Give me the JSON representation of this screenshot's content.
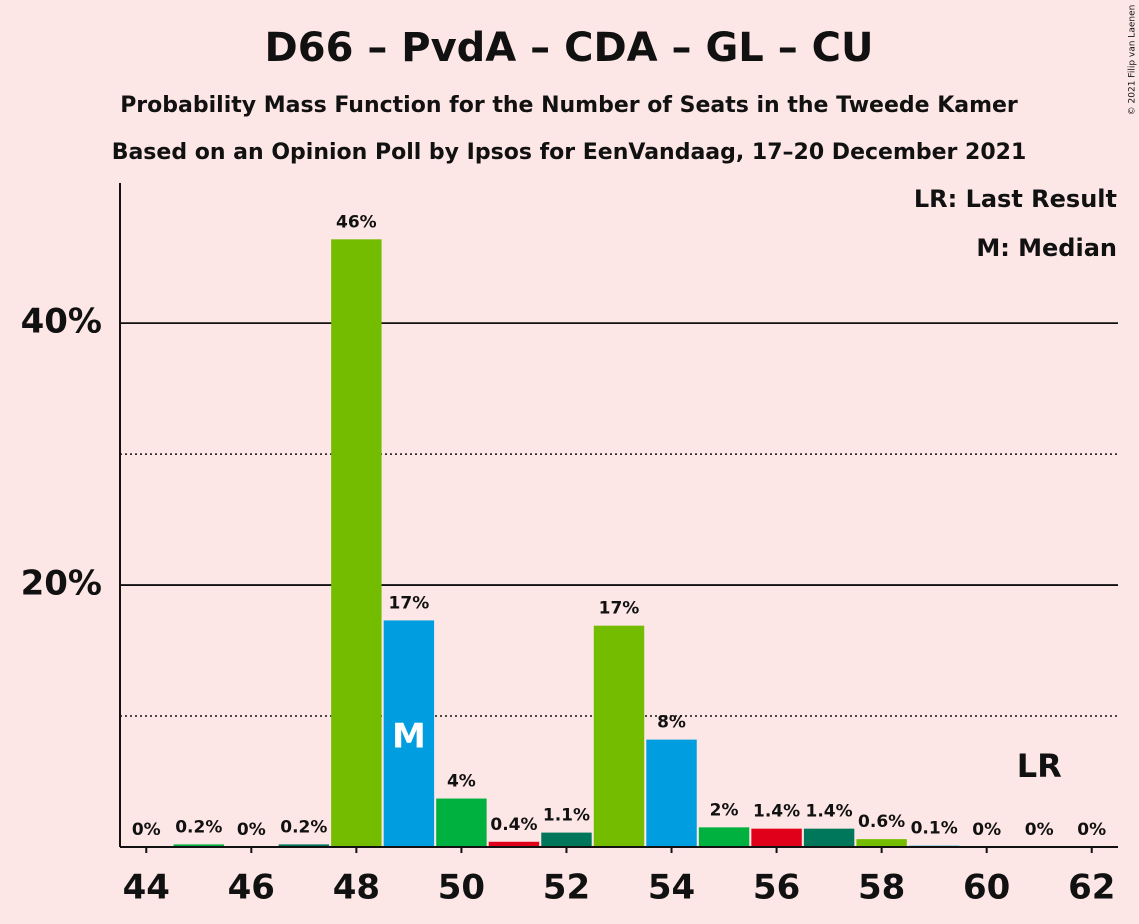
{
  "chart_data": {
    "type": "bar",
    "title": "D66 – PvdA – CDA – GL – CU",
    "subtitle": "Probability Mass Function for the Number of Seats in the Tweede Kamer",
    "subtitle2": "Based on an Opinion Poll by Ipsos for EenVandaag, 17–20 December 2021",
    "copyright": "© 2021 Filip van Laenen",
    "legend": [
      "LR: Last Result",
      "M: Median"
    ],
    "x": [
      44,
      45,
      46,
      47,
      48,
      49,
      50,
      51,
      52,
      53,
      54,
      55,
      56,
      57,
      58,
      59,
      60,
      61,
      62
    ],
    "values": [
      0,
      0.2,
      0,
      0.2,
      46.4,
      17.3,
      3.7,
      0.4,
      1.1,
      16.9,
      8.2,
      1.5,
      1.4,
      1.4,
      0.6,
      0.1,
      0,
      0,
      0
    ],
    "value_labels": [
      "0%",
      "0.2%",
      "0%",
      "0.2%",
      "46%",
      "17%",
      "4%",
      "0.4%",
      "1.1%",
      "17%",
      "8%",
      "2%",
      "1.4%",
      "1.4%",
      "0.6%",
      "0.1%",
      "0%",
      "0%",
      "0%"
    ],
    "colors": [
      "#74bc00",
      "#00b140",
      "#e0001a",
      "#00775a",
      "#74bc00",
      "#009ee0",
      "#00b140",
      "#e0001a",
      "#00775a",
      "#74bc00",
      "#009ee0",
      "#00b140",
      "#e0001a",
      "#00775a",
      "#74bc00",
      "#009ee0",
      "#00b140",
      "#e0001a",
      "#00775a"
    ],
    "xlim": [
      43.5,
      62.5
    ],
    "xticks": [
      44,
      46,
      48,
      50,
      52,
      54,
      56,
      58,
      60,
      62
    ],
    "ylim": [
      0,
      50.7
    ],
    "yticks": [
      {
        "value": 20,
        "label": "20%"
      },
      {
        "value": 40,
        "label": "40%"
      }
    ],
    "minor_yticks": [
      10,
      30
    ],
    "grid": true,
    "median": 49,
    "median_label": "M",
    "last_result": 61,
    "last_result_label": "LR"
  }
}
